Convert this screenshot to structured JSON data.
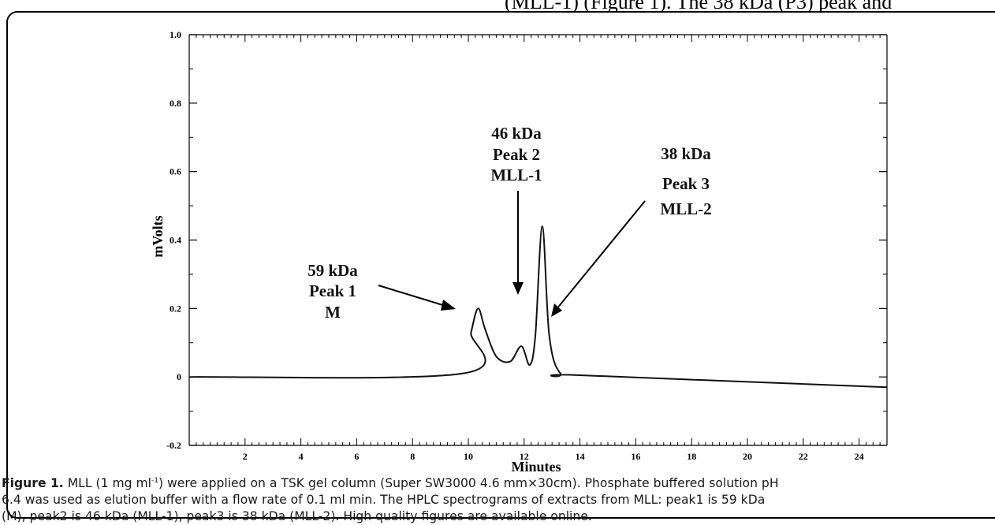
{
  "header_text": "(MLL-1) (Figure 1). The 38 kDa (P3) peak and",
  "chart_data": {
    "type": "line",
    "xlabel": "Minutes",
    "ylabel": "mVolts",
    "xlim": [
      0,
      25
    ],
    "ylim": [
      -0.2,
      1.0
    ],
    "x_ticks": [
      "2",
      "4",
      "6",
      "8",
      "10",
      "12",
      "14",
      "16",
      "18",
      "20",
      "22",
      "24"
    ],
    "y_ticks": [
      "1.0",
      "0.8",
      "0.6",
      "0.4",
      "0.2",
      "0",
      "-0.2"
    ],
    "grid": false,
    "series": [
      {
        "x": [
          0,
          9.8,
          10.1,
          10.35,
          10.6,
          11.0,
          11.5,
          11.9,
          12.2,
          12.4,
          12.65,
          12.9,
          13.3,
          14,
          25
        ],
        "y": [
          0.0,
          0.01,
          0.13,
          0.2,
          0.14,
          0.06,
          0.045,
          0.09,
          0.035,
          0.12,
          0.44,
          0.12,
          0.01,
          0.005,
          -0.03
        ]
      }
    ],
    "annotations": [
      {
        "lines": [
          "59 kDa",
          "Peak 1",
          "M"
        ]
      },
      {
        "lines": [
          "46 kDa",
          "Peak 2",
          "MLL-1"
        ]
      },
      {
        "lines": [
          "38 kDa",
          "Peak 3",
          "MLL-2"
        ]
      }
    ]
  },
  "caption": {
    "label": "Figure 1.",
    "line1_a": "MLL (1 mg ml",
    "line1_sup": "-1",
    "line1_b": ") were applied on a TSK gel column (Super SW3000 4.6 mm×30cm). Phosphate buffered solution pH",
    "line2": "6.4 was used as elution buffer with a flow rate of 0.1 ml min. The HPLC spectrograms of extracts from MLL: peak1 is 59 kDa",
    "line3": "(M), peak2 is 46 kDa (MLL-1), peak3 is 38 kDa (MLL-2). High quality figures are available online."
  }
}
